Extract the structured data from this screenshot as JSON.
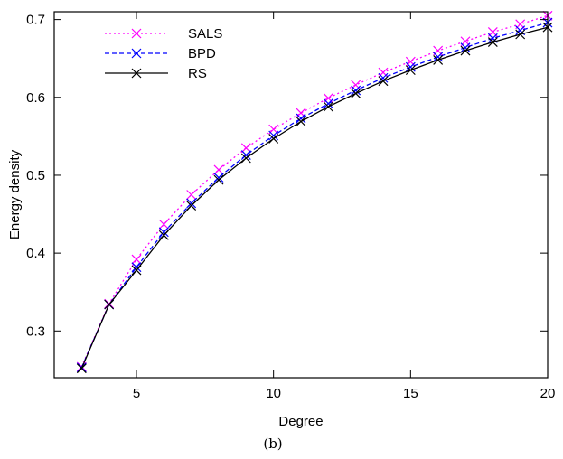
{
  "chart_data": {
    "type": "line",
    "x": [
      3,
      4,
      5,
      6,
      7,
      8,
      9,
      10,
      11,
      12,
      13,
      14,
      15,
      16,
      17,
      18,
      19,
      20
    ],
    "series": [
      {
        "name": "SALS",
        "color": "#ff00ff",
        "line_style": "dotted",
        "marker": "x",
        "values": [
          0.254,
          0.335,
          0.392,
          0.437,
          0.475,
          0.507,
          0.535,
          0.559,
          0.58,
          0.599,
          0.616,
          0.632,
          0.646,
          0.66,
          0.672,
          0.684,
          0.694,
          0.705
        ]
      },
      {
        "name": "BPD",
        "color": "#0000ff",
        "line_style": "dashed",
        "marker": "x",
        "values": [
          0.253,
          0.334,
          0.382,
          0.427,
          0.464,
          0.497,
          0.526,
          0.551,
          0.573,
          0.592,
          0.609,
          0.625,
          0.639,
          0.652,
          0.664,
          0.676,
          0.686,
          0.696
        ]
      },
      {
        "name": "RS",
        "color": "#000000",
        "line_style": "solid",
        "marker": "x",
        "values": [
          0.252,
          0.334,
          0.378,
          0.423,
          0.461,
          0.494,
          0.522,
          0.547,
          0.569,
          0.588,
          0.605,
          0.621,
          0.635,
          0.648,
          0.66,
          0.671,
          0.681,
          0.69
        ]
      }
    ],
    "xlabel": "Degree",
    "ylabel": "Energy density",
    "xlim": [
      2,
      20
    ],
    "ylim": [
      0.24,
      0.71
    ],
    "xticks": [
      5,
      10,
      15,
      20
    ],
    "yticks": [
      0.3,
      0.4,
      0.5,
      0.6,
      0.7
    ],
    "xtick_labels": [
      "5",
      "10",
      "15",
      "20"
    ],
    "ytick_labels": [
      "0.3",
      "0.4",
      "0.5",
      "0.6",
      "0.7"
    ],
    "legend_position": "top-left",
    "grid": false
  },
  "caption": "(b)"
}
